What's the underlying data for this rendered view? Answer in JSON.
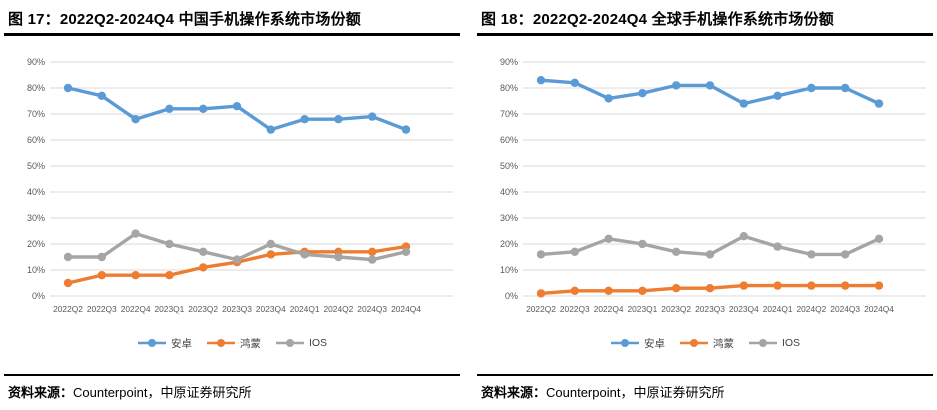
{
  "figures": [
    {
      "title": "图 17：2022Q2-2024Q4  中国手机操作系统市场份额",
      "source_label": "资料来源：",
      "source_text": "Counterpoint，中原证券研究所"
    },
    {
      "title": "图 18：2022Q2-2024Q4  全球手机操作系统市场份额",
      "source_label": "资料来源：",
      "source_text": "Counterpoint，中原证券研究所"
    }
  ],
  "chart_data": [
    {
      "type": "line",
      "title": "2022Q2-2024Q4 中国手机操作系统市场份额",
      "categories": [
        "2022Q2",
        "2022Q3",
        "2022Q4",
        "2023Q1",
        "2023Q2",
        "2023Q3",
        "2023Q4",
        "2024Q1",
        "2024Q2",
        "2024Q3",
        "2024Q4"
      ],
      "series": [
        {
          "name": "安卓",
          "color": "#5B9BD5",
          "values": [
            80,
            77,
            68,
            72,
            72,
            73,
            64,
            68,
            68,
            69,
            64
          ]
        },
        {
          "name": "鸿蒙",
          "color": "#ED7D31",
          "values": [
            5,
            8,
            8,
            8,
            11,
            13,
            16,
            17,
            17,
            17,
            19
          ]
        },
        {
          "name": "IOS",
          "color": "#A5A5A5",
          "values": [
            15,
            15,
            24,
            20,
            17,
            14,
            20,
            16,
            15,
            14,
            17
          ]
        }
      ],
      "xlabel": "",
      "ylabel": "",
      "ylim": [
        0,
        90
      ],
      "ytick_step": 10,
      "ytick_suffix": "%",
      "grid": true,
      "legend_position": "bottom",
      "grid_color": "#D9D9D9",
      "tick_color": "#595959"
    },
    {
      "type": "line",
      "title": "2022Q2-2024Q4 全球手机操作系统市场份额",
      "categories": [
        "2022Q2",
        "2022Q3",
        "2022Q4",
        "2023Q1",
        "2023Q2",
        "2023Q3",
        "2023Q4",
        "2024Q1",
        "2024Q2",
        "2024Q3",
        "2024Q4"
      ],
      "series": [
        {
          "name": "安卓",
          "color": "#5B9BD5",
          "values": [
            83,
            82,
            76,
            78,
            81,
            81,
            74,
            77,
            80,
            80,
            74
          ]
        },
        {
          "name": "鸿蒙",
          "color": "#ED7D31",
          "values": [
            1,
            2,
            2,
            2,
            3,
            3,
            4,
            4,
            4,
            4,
            4
          ]
        },
        {
          "name": "IOS",
          "color": "#A5A5A5",
          "values": [
            16,
            17,
            22,
            20,
            17,
            16,
            23,
            19,
            16,
            16,
            22
          ]
        }
      ],
      "xlabel": "",
      "ylabel": "",
      "ylim": [
        0,
        90
      ],
      "ytick_step": 10,
      "ytick_suffix": "%",
      "grid": true,
      "legend_position": "bottom",
      "grid_color": "#D9D9D9",
      "tick_color": "#595959"
    }
  ]
}
